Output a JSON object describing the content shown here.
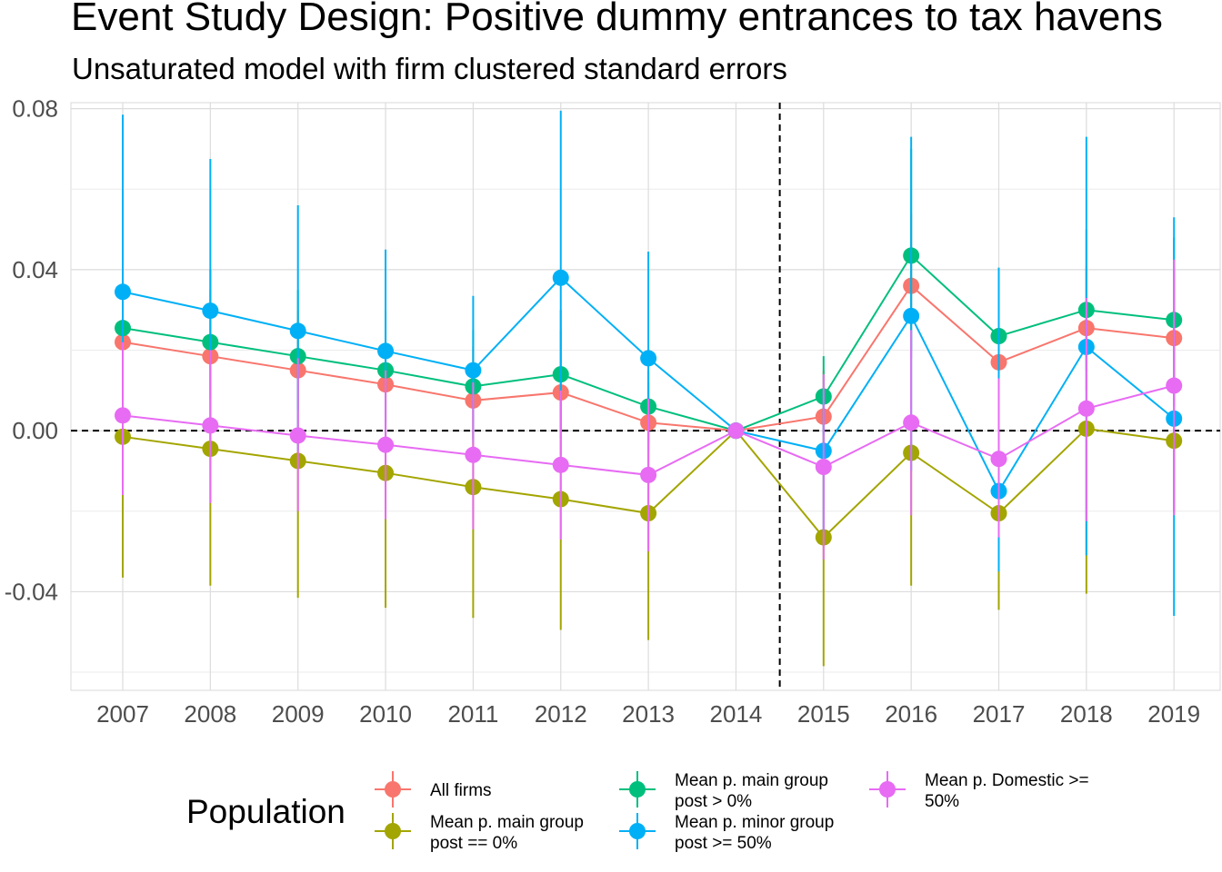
{
  "chart_data": {
    "type": "line",
    "title": "Event Study Design: Positive dummy entrances to tax havens",
    "subtitle": "Unsaturated model with firm clustered standard errors",
    "xlabel": "",
    "ylabel": "",
    "x": [
      "2007",
      "2008",
      "2009",
      "2010",
      "2011",
      "2012",
      "2013",
      "2014",
      "2015",
      "2016",
      "2017",
      "2018",
      "2019"
    ],
    "ylim": [
      -0.0645,
      0.0815
    ],
    "y_ticks": [
      -0.04,
      0.0,
      0.04,
      0.08
    ],
    "y_tick_labels": [
      "-0.04",
      "0.00",
      "0.04",
      "0.08"
    ],
    "reference_lines": {
      "vertical_between": [
        "2014",
        "2015"
      ],
      "horizontal_y": 0.0
    },
    "grid": true,
    "legend": {
      "title": "Population",
      "position": "bottom"
    },
    "series": [
      {
        "name": "All firms",
        "color": "#F8766D",
        "values": [
          0.022,
          0.0185,
          0.015,
          0.0115,
          0.0075,
          0.0095,
          0.002,
          0.0,
          0.0035,
          0.036,
          0.017,
          0.0255,
          0.023
        ],
        "lower": [
          0.004,
          0.002,
          0.0,
          -0.002,
          -0.006,
          -0.006,
          -0.008,
          0.0,
          -0.008,
          0.018,
          0.006,
          0.01,
          0.006
        ],
        "upper": [
          0.04,
          0.035,
          0.03,
          0.025,
          0.021,
          0.025,
          0.012,
          0.0,
          0.015,
          0.054,
          0.028,
          0.041,
          0.04
        ]
      },
      {
        "name": "Mean p. main group\npost == 0%",
        "color": "#A3A500",
        "values": [
          -0.0015,
          -0.0045,
          -0.0075,
          -0.0105,
          -0.014,
          -0.017,
          -0.0205,
          0.0,
          -0.0265,
          -0.0055,
          -0.0205,
          0.0005,
          -0.0025
        ],
        "lower": [
          -0.0365,
          -0.0385,
          -0.0415,
          -0.044,
          -0.0465,
          -0.0495,
          -0.052,
          0.0,
          -0.0585,
          -0.0385,
          -0.0445,
          -0.0405,
          -0.02
        ],
        "upper": [
          0.0,
          0.0,
          0.0,
          0.0,
          0.0,
          0.0,
          0.0,
          0.0,
          0.0,
          0.0,
          0.0,
          0.0,
          0.0
        ]
      },
      {
        "name": "Mean p. main group\npost > 0%",
        "color": "#00BF7D",
        "values": [
          0.0255,
          0.022,
          0.0185,
          0.015,
          0.011,
          0.014,
          0.006,
          0.0,
          0.0085,
          0.0435,
          0.0235,
          0.03,
          0.0275
        ],
        "lower": [
          0.01,
          0.008,
          0.005,
          0.002,
          -0.002,
          0.0,
          -0.003,
          0.0,
          -0.001,
          0.02,
          0.008,
          0.015,
          0.01
        ],
        "upper": [
          0.045,
          0.04,
          0.035,
          0.03,
          0.025,
          0.03,
          0.015,
          0.0,
          0.0185,
          0.07,
          0.0405,
          0.05,
          0.048
        ]
      },
      {
        "name": "Mean p. minor group\npost >= 50%",
        "color": "#00B0F6",
        "values": [
          0.0345,
          0.0298,
          0.0248,
          0.0198,
          0.015,
          0.038,
          0.018,
          0.0,
          -0.005,
          0.0285,
          -0.015,
          0.0208,
          0.003
        ],
        "lower": [
          -0.005,
          -0.005,
          -0.005,
          -0.005,
          -0.003,
          -0.002,
          -0.005,
          0.0,
          -0.025,
          -0.01,
          -0.035,
          -0.031,
          -0.046
        ],
        "upper": [
          0.0785,
          0.0675,
          0.056,
          0.045,
          0.0335,
          0.0795,
          0.0445,
          0.0,
          0.01,
          0.073,
          0.0405,
          0.073,
          0.053
        ]
      },
      {
        "name": "Mean p. Domestic >=\n50%",
        "color": "#E76BF3",
        "values": [
          0.0038,
          0.0013,
          -0.0012,
          -0.0035,
          -0.006,
          -0.0085,
          -0.011,
          0.0,
          -0.009,
          0.002,
          -0.007,
          0.0055,
          0.0112
        ],
        "lower": [
          -0.016,
          -0.018,
          -0.02,
          -0.022,
          -0.0245,
          -0.027,
          -0.03,
          0.0,
          -0.032,
          -0.021,
          -0.0265,
          -0.0225,
          -0.021
        ],
        "upper": [
          0.022,
          0.02,
          0.018,
          0.015,
          0.012,
          0.01,
          0.008,
          0.0,
          0.014,
          0.025,
          0.013,
          0.033,
          0.0425
        ]
      }
    ]
  }
}
